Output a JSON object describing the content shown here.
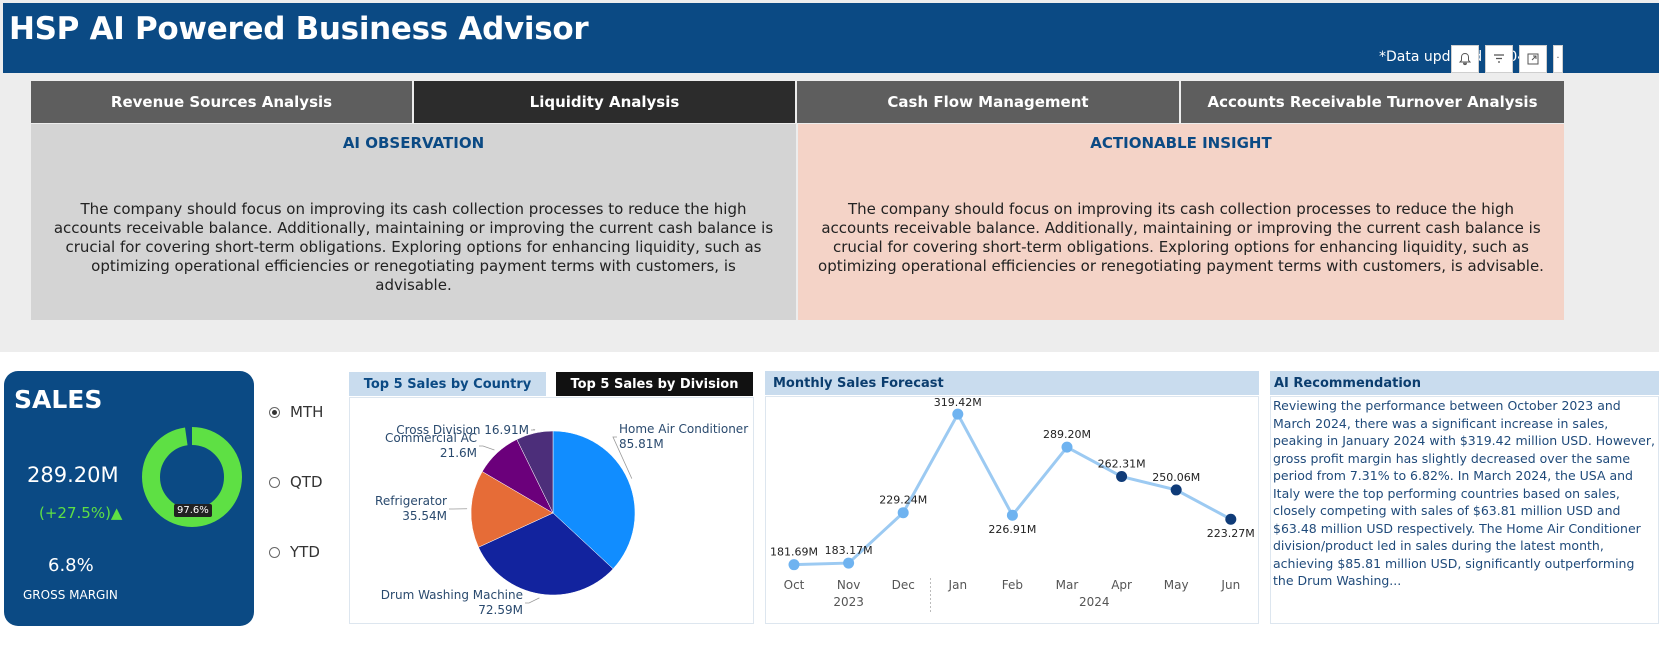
{
  "header": {
    "title": "HSP AI Powered Business Advisor",
    "updated": "*Data updated on 04/..."
  },
  "toolbar_icons": [
    "bell-icon",
    "filter-icon",
    "focus-mode-icon",
    "more-options-icon"
  ],
  "tabs": [
    {
      "label": "Revenue Sources Analysis",
      "active": false
    },
    {
      "label": "Liquidity Analysis",
      "active": true
    },
    {
      "label": "Cash Flow Management",
      "active": false
    },
    {
      "label": "Accounts Receivable Turnover Analysis",
      "active": false
    }
  ],
  "observation": {
    "title": "AI OBSERVATION",
    "text": "The company should focus on improving its cash collection processes to reduce the high accounts receivable balance. Additionally, maintaining or improving the current cash balance is crucial for covering short-term obligations. Exploring options for enhancing liquidity, such as optimizing operational efficiencies or renegotiating payment terms with customers, is advisable."
  },
  "insight": {
    "title": "ACTIONABLE INSIGHT",
    "text": "The company should focus on improving its cash collection processes to reduce the high accounts receivable balance. Additionally, maintaining or improving the current cash balance is crucial for covering short-term obligations. Exploring options for enhancing liquidity, such as optimizing operational efficiencies or renegotiating payment terms with customers, is advisable."
  },
  "sales": {
    "title": "SALES",
    "value": "289.20M",
    "change": "(+27.5%)▲",
    "donut_label": "97.6%",
    "donut_fraction": 0.976,
    "margin_value": "6.8%",
    "margin_label": "GROSS MARGIN"
  },
  "period": {
    "options": [
      {
        "label": "MTH",
        "selected": true
      },
      {
        "label": "QTD",
        "selected": false
      },
      {
        "label": "YTD",
        "selected": false
      }
    ]
  },
  "top5": {
    "tab_country": "Top 5 Sales by Country",
    "tab_division": "Top 5 Sales by Division"
  },
  "forecast": {
    "title": "Monthly Sales Forecast"
  },
  "recommendation": {
    "title": "AI Recommendation",
    "text": "Reviewing the performance between October 2023 and March 2024, there was a significant increase in sales, peaking in January 2024 with $319.42 million USD. However, gross profit margin has slightly decreased over the same period from 7.31% to 6.82%. In March 2024, the USA and Italy were the top performing countries based on sales, closely competing with sales of $63.81 million USD and $63.48 million USD respectively. The Home Air Conditioner division/product led in sales during the latest month, achieving $85.81 million USD, significantly outperforming the Drum Washing..."
  },
  "colors": {
    "header": "#0b4a84",
    "donut": "#5ee044",
    "line_actual": "#9ccaf2",
    "line_forecast": "#0f3b78"
  },
  "chart_data": [
    {
      "type": "pie",
      "categories": [
        "Home Air Conditioner",
        "Drum Washing Machine",
        "Refrigerator",
        "Commercial AC",
        "Cross Division"
      ],
      "values": [
        85.81,
        72.59,
        35.54,
        21.6,
        16.91
      ],
      "labels": [
        "85.81M",
        "72.59M",
        "35.54M",
        "21.6M",
        "16.91M"
      ],
      "colors": [
        "#118dff",
        "#12239e",
        "#e66c37",
        "#6b007b",
        "#4c2e7a"
      ]
    },
    {
      "type": "line",
      "x": [
        "Oct",
        "Nov",
        "Dec",
        "Jan",
        "Feb",
        "Mar",
        "Apr",
        "May",
        "Jun"
      ],
      "year_labels": [
        "2023",
        "2024"
      ],
      "values": [
        181.69,
        183.17,
        229.24,
        319.42,
        226.91,
        289.2,
        262.31,
        250.06,
        223.27
      ],
      "labels": [
        "181.69M",
        "183.17M",
        "229.24M",
        "319.42M",
        "226.91M",
        "289.20M",
        "262.31M",
        "250.06M",
        "223.27M"
      ],
      "forecast_from_index": 6,
      "ylim": [
        175,
        325
      ]
    }
  ]
}
